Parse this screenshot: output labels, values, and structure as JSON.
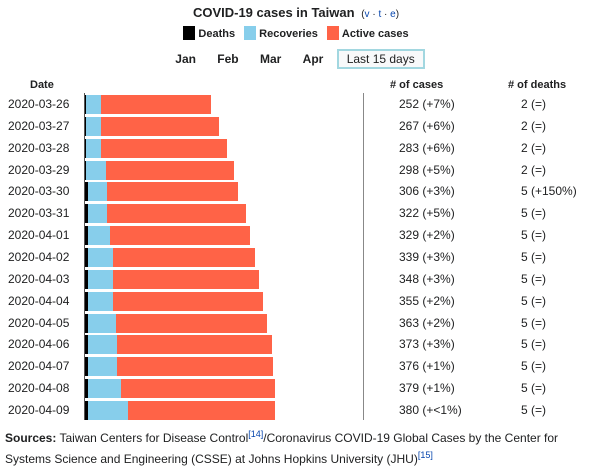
{
  "title": "COVID-19 cases in Taiwan",
  "vte": {
    "v": "v",
    "t": "t",
    "e": "e",
    "sep": "·"
  },
  "legend": [
    {
      "label": "Deaths",
      "color": "#000000"
    },
    {
      "label": "Recoveries",
      "color": "#87ceeb"
    },
    {
      "label": "Active cases",
      "color": "#ff6347"
    }
  ],
  "tabs": [
    {
      "label": "Jan",
      "selected": false
    },
    {
      "label": "Feb",
      "selected": false
    },
    {
      "label": "Mar",
      "selected": false
    },
    {
      "label": "Apr",
      "selected": false
    },
    {
      "label": "Last 15 days",
      "selected": true
    }
  ],
  "headers": {
    "date": "Date",
    "cases": "# of cases",
    "deaths": "# of deaths"
  },
  "chart_data": {
    "type": "bar",
    "orientation": "horizontal",
    "stacked": true,
    "categories": [
      "2020-03-26",
      "2020-03-27",
      "2020-03-28",
      "2020-03-29",
      "2020-03-30",
      "2020-03-31",
      "2020-04-01",
      "2020-04-02",
      "2020-04-03",
      "2020-04-04",
      "2020-04-05",
      "2020-04-06",
      "2020-04-07",
      "2020-04-08",
      "2020-04-09"
    ],
    "series": [
      {
        "name": "Deaths",
        "color": "#000000",
        "values": [
          2,
          2,
          2,
          2,
          5,
          5,
          5,
          5,
          5,
          5,
          5,
          5,
          5,
          5,
          5
        ]
      },
      {
        "name": "Recoveries",
        "color": "#87ceeb",
        "values": [
          29,
          30,
          30,
          39,
          39,
          39,
          45,
          50,
          50,
          50,
          57,
          58,
          58,
          66,
          80
        ]
      },
      {
        "name": "Active cases",
        "color": "#ff6347",
        "values": [
          221,
          235,
          251,
          257,
          262,
          278,
          279,
          284,
          293,
          300,
          301,
          310,
          313,
          308,
          295
        ]
      }
    ],
    "cases_text": [
      "252 (+7%)",
      "267 (+6%)",
      "283 (+6%)",
      "298 (+5%)",
      "306 (+3%)",
      "322 (+5%)",
      "329 (+2%)",
      "339 (+3%)",
      "348 (+3%)",
      "355 (+2%)",
      "363 (+2%)",
      "373 (+3%)",
      "376 (+1%)",
      "379 (+1%)",
      "380 (+<1%)"
    ],
    "deaths_text": [
      "2 (=)",
      "2 (=)",
      "2 (=)",
      "2 (=)",
      "5 (+150%)",
      "5 (=)",
      "5 (=)",
      "5 (=)",
      "5 (=)",
      "5 (=)",
      "5 (=)",
      "5 (=)",
      "5 (=)",
      "5 (=)",
      "5 (=)"
    ],
    "xlim": [
      0,
      380
    ],
    "grid": false,
    "legend_position": "top"
  },
  "sources": {
    "label": "Sources:",
    "text1": "Taiwan Centers for Disease Control",
    "ref1": "[14]",
    "text2": "/Coronavirus COVID-19 Global Cases by the Center for Systems Science and Engineering (CSSE) at Johns Hopkins University (JHU)",
    "ref2": "[15]"
  }
}
